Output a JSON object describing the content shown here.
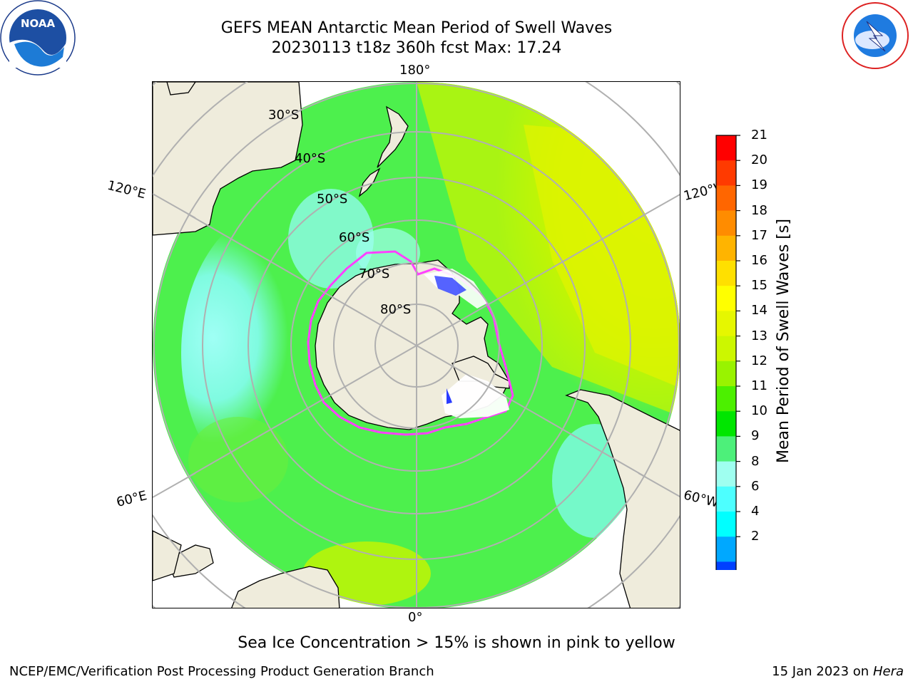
{
  "title_line1": "GEFS MEAN Antarctic Mean Period of Swell Waves",
  "title_line2": "20230113 t18z 360h fcst   Max: 17.24",
  "logos": {
    "left": "NOAA",
    "right": "NATIONAL WEATHER SERVICE"
  },
  "map": {
    "projection": "south-polar-stereographic",
    "lon_labels": {
      "top": "180°",
      "bottom": "0°",
      "upper_left": "120°E",
      "upper_right": "120°W",
      "lower_left": "60°E",
      "lower_right": "60°W"
    },
    "lat_labels": [
      "30°S",
      "40°S",
      "50°S",
      "60°S",
      "70°S",
      "80°S"
    ],
    "colors": {
      "land": "#efecdc",
      "ocean_bg": "#4df04d",
      "grid": "#b0b0b0",
      "ice_edge": "#ff40ff"
    }
  },
  "colorbar": {
    "title": "Mean Period of Swell Waves [s]",
    "ticks": [
      "21",
      "20",
      "19",
      "18",
      "17",
      "16",
      "15",
      "14",
      "13",
      "12",
      "11",
      "10",
      "9",
      "8",
      "6",
      "4",
      "2"
    ],
    "bin_colors": [
      "#ff0000",
      "#ff3a00",
      "#ff6600",
      "#ff8c00",
      "#ffb400",
      "#ffe000",
      "#ffff00",
      "#e6f700",
      "#ccf700",
      "#99f300",
      "#4cf000",
      "#00e600",
      "#4df07a",
      "#9ffff0",
      "#4dffff",
      "#00ffff",
      "#00a8ff",
      "#0040ff"
    ],
    "extend_color": "#0000ff"
  },
  "footnote": "Sea Ice Concentration > 15% is shown in pink to yellow",
  "credit_left": "NCEP/EMC/Verification Post Processing Product Generation Branch",
  "credit_right_date": "15 Jan 2023 on",
  "credit_right_host": "Hera"
}
